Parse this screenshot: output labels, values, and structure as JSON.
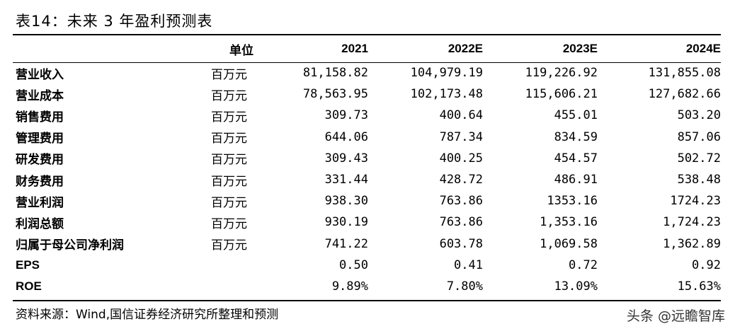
{
  "title": "表14：未来 3 年盈利预测表",
  "table": {
    "headers": [
      "",
      "单位",
      "2021",
      "2022E",
      "2023E",
      "2024E"
    ],
    "rows": [
      {
        "label": "营业收入",
        "unit": "百万元",
        "values": [
          "81,158.82",
          "104,979.19",
          "119,226.92",
          "131,855.08"
        ]
      },
      {
        "label": "营业成本",
        "unit": "百万元",
        "values": [
          "78,563.95",
          "102,173.48",
          "115,606.21",
          "127,682.66"
        ]
      },
      {
        "label": "销售费用",
        "unit": "百万元",
        "values": [
          "309.73",
          "400.64",
          "455.01",
          "503.20"
        ]
      },
      {
        "label": "管理费用",
        "unit": "百万元",
        "values": [
          "644.06",
          "787.34",
          "834.59",
          "857.06"
        ]
      },
      {
        "label": "研发费用",
        "unit": "百万元",
        "values": [
          "309.43",
          "400.25",
          "454.57",
          "502.72"
        ]
      },
      {
        "label": "财务费用",
        "unit": "百万元",
        "values": [
          "331.44",
          "428.72",
          "486.91",
          "538.48"
        ]
      },
      {
        "label": "营业利润",
        "unit": "百万元",
        "values": [
          "938.30",
          "763.86",
          "1353.16",
          "1724.23"
        ]
      },
      {
        "label": "利润总额",
        "unit": "百万元",
        "values": [
          "930.19",
          "763.86",
          "1,353.16",
          "1,724.23"
        ]
      },
      {
        "label": "归属于母公司净利润",
        "unit": "百万元",
        "values": [
          "741.22",
          "603.78",
          "1,069.58",
          "1,362.89"
        ]
      },
      {
        "label": "EPS",
        "unit": "",
        "values": [
          "0.50",
          "0.41",
          "0.72",
          "0.92"
        ]
      },
      {
        "label": "ROE",
        "unit": "",
        "values": [
          "9.89%",
          "7.80%",
          "13.09%",
          "15.63%"
        ]
      }
    ]
  },
  "source": "资料来源：Wind,国信证券经济研究所整理和预测",
  "watermark": "头条 @远瞻智库"
}
